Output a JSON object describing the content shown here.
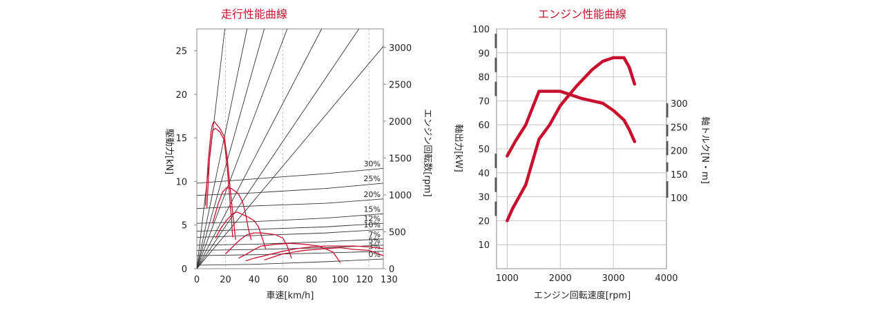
{
  "chart_data": [
    {
      "type": "line",
      "title": "走行性能曲線",
      "xlabel": "車速[km/h]",
      "ylabel": "駆動力[kN]",
      "y2label": "エンジン回転数[rpm]",
      "xlim": [
        0,
        130
      ],
      "ylim": [
        0,
        27.5
      ],
      "y2lim": [
        0,
        3250
      ],
      "xticks": [
        "0",
        "20",
        "40",
        "60",
        "80",
        "100",
        "120",
        "130"
      ],
      "yticks": [
        "0",
        "5",
        "10",
        "15",
        "20",
        "25"
      ],
      "y2ticks": [
        "0",
        "500",
        "1000",
        "1500",
        "2000",
        "2500",
        "3000"
      ],
      "colors": {
        "drive": "#c8102e",
        "grid": "#333333"
      },
      "gear_lines": [
        {
          "x": [
            0,
            19.5
          ],
          "y": [
            0,
            27.5
          ]
        },
        {
          "x": [
            0,
            35
          ],
          "y": [
            0,
            27.5
          ]
        },
        {
          "x": [
            0,
            47
          ],
          "y": [
            0,
            27.5
          ]
        },
        {
          "x": [
            0,
            63
          ],
          "y": [
            0,
            27.5
          ]
        },
        {
          "x": [
            0,
            87
          ],
          "y": [
            0,
            27.5
          ]
        },
        {
          "x": [
            0,
            113
          ],
          "y": [
            0,
            27.5
          ]
        },
        {
          "x": [
            0,
            130
          ],
          "y": [
            0,
            25.5
          ]
        }
      ],
      "grade_lines": [
        {
          "label": "30%",
          "y": [
            9.8,
            10.3,
            10.9,
            11.5
          ]
        },
        {
          "label": "25%",
          "y": [
            8.4,
            8.7,
            9.2,
            9.8
          ]
        },
        {
          "label": "20%",
          "y": [
            6.9,
            7.2,
            7.5,
            8.0
          ]
        },
        {
          "label": "15%",
          "y": [
            5.2,
            5.4,
            5.8,
            6.3
          ]
        },
        {
          "label": "12%",
          "y": [
            4.3,
            4.5,
            4.8,
            5.2
          ]
        },
        {
          "label": "10%",
          "y": [
            3.6,
            3.8,
            4.1,
            4.5
          ]
        },
        {
          "label": "7%",
          "y": [
            2.7,
            2.8,
            3.1,
            3.4
          ]
        },
        {
          "label": "5%",
          "y": [
            2.1,
            2.2,
            2.4,
            2.7
          ]
        },
        {
          "label": "3%",
          "y": [
            1.5,
            1.6,
            1.8,
            2.0
          ]
        },
        {
          "label": "0%",
          "y": [
            0.4,
            0.5,
            0.8,
            1.1
          ]
        }
      ],
      "grade_x": [
        0,
        40,
        90,
        130
      ],
      "drive_curves": [
        {
          "x": [
            6,
            8,
            10,
            11,
            12,
            13,
            16,
            19,
            21,
            24,
            27
          ],
          "y": [
            7.2,
            12.5,
            15.8,
            16.6,
            16.9,
            16.7,
            16.1,
            15.2,
            13.0,
            8.0,
            3.3
          ]
        },
        {
          "x": [
            7,
            9,
            11,
            12,
            13,
            16,
            19,
            21,
            24,
            25
          ],
          "y": [
            7.0,
            13.0,
            15.8,
            16.0,
            16.1,
            15.7,
            14.8,
            12.0,
            6.0,
            3.6
          ]
        },
        {
          "x": [
            11,
            15,
            18,
            21,
            24,
            29,
            32,
            34,
            36,
            38
          ],
          "y": [
            5.2,
            7.5,
            8.8,
            9.3,
            9.2,
            8.6,
            7.6,
            6.3,
            4.5,
            3.3
          ]
        },
        {
          "x": [
            13,
            17,
            21,
            25,
            28,
            32,
            36,
            40,
            43,
            48
          ],
          "y": [
            3.5,
            4.7,
            5.6,
            6.3,
            6.5,
            6.2,
            5.9,
            5.5,
            4.8,
            2.3
          ]
        },
        {
          "x": [
            20,
            25,
            30,
            35,
            40,
            45,
            50,
            55,
            60,
            63,
            66
          ],
          "y": [
            1.7,
            2.5,
            3.3,
            3.9,
            4.1,
            4.1,
            4.0,
            3.9,
            3.5,
            2.6,
            1.2
          ]
        },
        {
          "x": [
            29,
            35,
            40,
            45,
            55,
            65,
            75,
            85,
            95,
            100
          ],
          "y": [
            1.2,
            1.7,
            2.2,
            2.6,
            2.8,
            2.9,
            2.8,
            2.6,
            1.9,
            0.7
          ]
        },
        {
          "x": [
            34,
            40,
            50,
            60,
            70,
            80,
            90,
            100,
            110,
            120,
            130
          ],
          "y": [
            0.9,
            1.2,
            1.6,
            2.0,
            2.3,
            2.5,
            2.6,
            2.6,
            2.6,
            2.5,
            2.3
          ]
        },
        {
          "x": [
            47,
            60,
            75,
            90,
            100,
            110,
            120,
            130
          ],
          "y": [
            1.0,
            1.7,
            2.1,
            2.3,
            2.4,
            2.2,
            2.1,
            1.5
          ]
        }
      ]
    },
    {
      "type": "line",
      "title": "エンジン性能曲線",
      "xlabel": "エンジン回転速度[rpm]",
      "ylabel": "軸出力[kW]",
      "y2label": "軸トルク[N・m]",
      "xlim": [
        800,
        4000
      ],
      "ylim": [
        0,
        100
      ],
      "xticks": [
        "1000",
        "2000",
        "3000",
        "4000"
      ],
      "yticks": [
        "10",
        "20",
        "30",
        "40",
        "50",
        "60",
        "70",
        "80",
        "90",
        "100"
      ],
      "y2ticks": [
        "100",
        "150",
        "200",
        "250",
        "300"
      ],
      "colors": {
        "curve": "#c8102e"
      },
      "series": [
        {
          "x": [
            1000,
            1100,
            1350,
            1600,
            1800,
            2000,
            2300,
            2600,
            2800,
            3000,
            3200,
            3300,
            3400
          ],
          "y": [
            20,
            25,
            35,
            54,
            60,
            68,
            76,
            83,
            86.5,
            88,
            88,
            84,
            77
          ]
        },
        {
          "x": [
            1000,
            1150,
            1350,
            1600,
            2000,
            2400,
            2800,
            3000,
            3200,
            3300,
            3400
          ],
          "y": [
            47,
            53,
            60,
            74,
            74,
            71,
            69,
            66,
            62,
            58,
            53
          ]
        }
      ]
    }
  ]
}
